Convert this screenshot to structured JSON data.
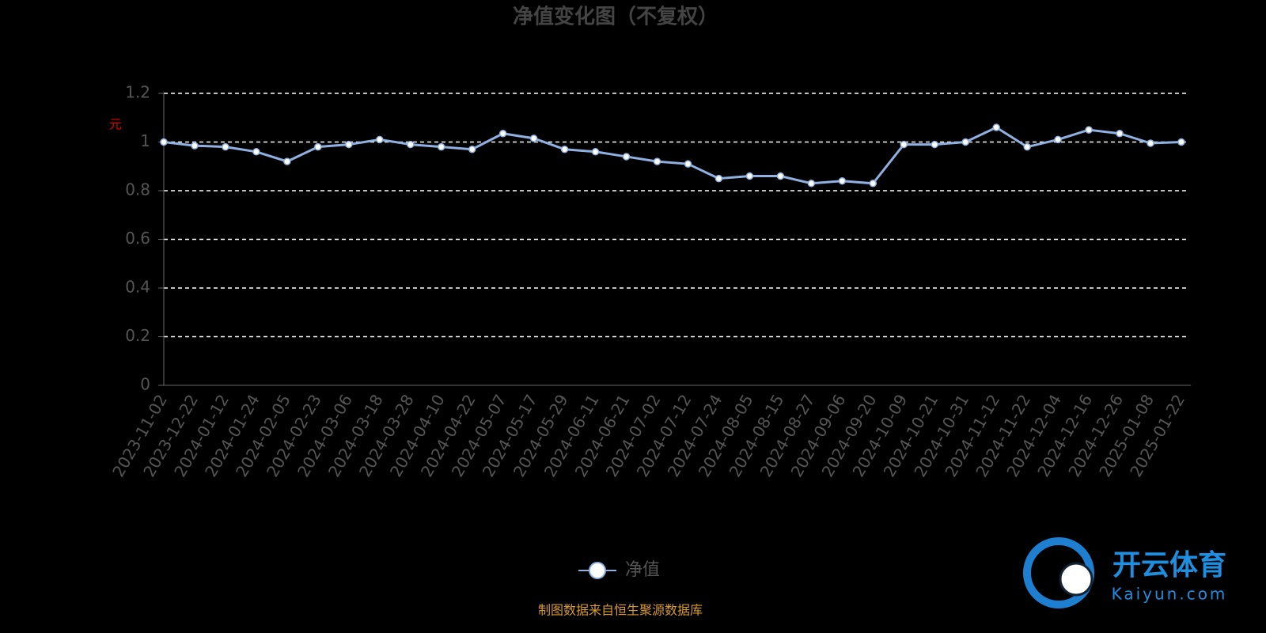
{
  "chart_data": {
    "type": "line",
    "title": "净值变化图（不复权）",
    "y_label": "元",
    "categories": [
      "2023-11-02",
      "2023-12-22",
      "2024-01-12",
      "2024-01-24",
      "2024-02-05",
      "2024-02-23",
      "2024-03-06",
      "2024-03-18",
      "2024-03-28",
      "2024-04-10",
      "2024-04-22",
      "2024-05-07",
      "2024-05-17",
      "2024-05-29",
      "2024-06-11",
      "2024-06-21",
      "2024-07-02",
      "2024-07-12",
      "2024-07-24",
      "2024-08-05",
      "2024-08-15",
      "2024-08-27",
      "2024-09-06",
      "2024-09-20",
      "2024-10-09",
      "2024-10-21",
      "2024-10-31",
      "2024-11-12",
      "2024-11-22",
      "2024-12-04",
      "2024-12-16",
      "2024-12-26",
      "2025-01-08",
      "2025-01-22"
    ],
    "series": [
      {
        "name": "净值",
        "color": "#8fb0e0",
        "values": [
          1.0,
          0.985,
          0.98,
          0.96,
          0.92,
          0.98,
          0.99,
          1.01,
          0.99,
          0.98,
          0.97,
          1.035,
          1.015,
          0.97,
          0.96,
          0.94,
          0.92,
          0.91,
          0.85,
          0.86,
          0.86,
          0.83,
          0.84,
          0.83,
          0.99,
          0.99,
          1.0,
          1.06,
          0.98,
          1.01,
          1.05,
          1.035,
          0.995,
          1.0
        ]
      }
    ],
    "ylim": [
      0,
      1.2
    ],
    "yticks": [
      0,
      0.2,
      0.4,
      0.6,
      0.8,
      1,
      1.2
    ],
    "grid": true,
    "source": "制图数据来自恒生聚源数据库"
  },
  "watermark": {
    "brand": "开云体育",
    "site": "Kaiyun.com"
  }
}
